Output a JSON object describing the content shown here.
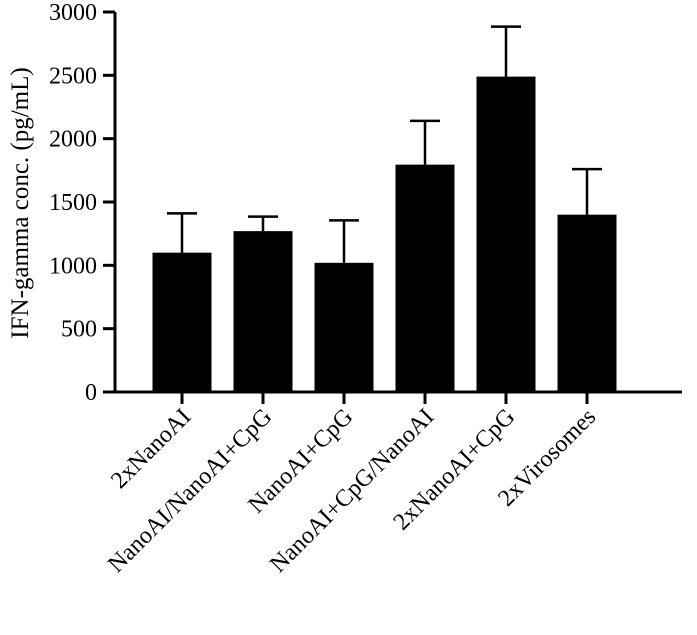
{
  "chart_data": {
    "type": "bar",
    "title": "",
    "xlabel": "",
    "ylabel": "IFN-gamma conc. (pg/mL)",
    "ylim": [
      0,
      3000
    ],
    "yticks": [
      "0",
      "500",
      "1000",
      "1500",
      "2000",
      "2500",
      "3000"
    ],
    "categories": [
      "2xNanoAI",
      "NanoAI/NanoAI+CpG",
      "NanoAI+CpG",
      "NanoAI+CpG/NanoAI",
      "2xNanoAI+CpG",
      "2xVirosomes"
    ],
    "values": [
      1100,
      1270,
      1020,
      1795,
      2490,
      1400
    ],
    "error_upper": [
      310,
      115,
      335,
      345,
      395,
      360
    ],
    "bar_color": "#000000",
    "grid": false,
    "legend": "none"
  }
}
